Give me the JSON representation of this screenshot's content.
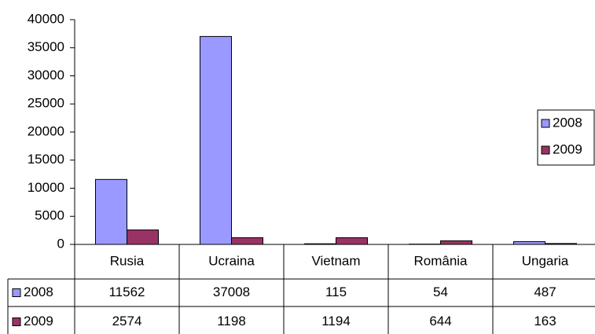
{
  "chart_data": {
    "type": "bar",
    "categories": [
      "Rusia",
      "Ucraina",
      "Vietnam",
      "România",
      "Ungaria"
    ],
    "series": [
      {
        "name": "2008",
        "color": "#9999ff",
        "values": [
          11562,
          37008,
          115,
          54,
          487
        ]
      },
      {
        "name": "2009",
        "color": "#993366",
        "values": [
          2574,
          1198,
          1194,
          644,
          163
        ]
      }
    ],
    "ylim": [
      0,
      40000
    ],
    "yticks": [
      0,
      5000,
      10000,
      15000,
      20000,
      25000,
      30000,
      35000,
      40000
    ],
    "grid": false,
    "legend": "right"
  }
}
